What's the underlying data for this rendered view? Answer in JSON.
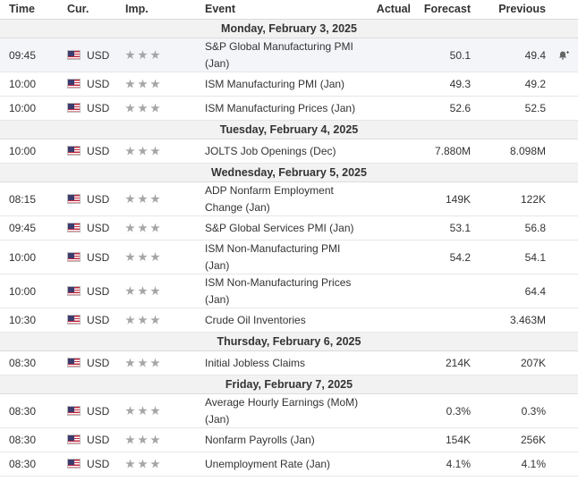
{
  "header": {
    "time": "Time",
    "currency": "Cur.",
    "importance": "Imp.",
    "event": "Event",
    "actual": "Actual",
    "forecast": "Forecast",
    "previous": "Previous"
  },
  "colors": {
    "star": "#a5a5a5",
    "day_bg": "#f2f2f2",
    "highlight_bg": "#f3f5f9",
    "flag_red": "#c0283e",
    "flag_blue": "#3c3b6e"
  },
  "days": [
    {
      "label": "Monday, February 3, 2025",
      "events": [
        {
          "time": "09:45",
          "currency": "USD",
          "flag_icon": "us-flag-icon",
          "importance": 3,
          "event_line1": "S&P Global Manufacturing PMI",
          "event_line2": "(Jan)",
          "actual": "",
          "forecast": "50.1",
          "previous": "49.4",
          "alert": true
        },
        {
          "time": "10:00",
          "currency": "USD",
          "flag_icon": "us-flag-icon",
          "importance": 3,
          "event_line1": "ISM Manufacturing PMI (Jan)",
          "event_line2": "",
          "actual": "",
          "forecast": "49.3",
          "previous": "49.2"
        },
        {
          "time": "10:00",
          "currency": "USD",
          "flag_icon": "us-flag-icon",
          "importance": 3,
          "event_line1": "ISM Manufacturing Prices (Jan)",
          "event_line2": "",
          "actual": "",
          "forecast": "52.6",
          "previous": "52.5"
        }
      ]
    },
    {
      "label": "Tuesday, February 4, 2025",
      "events": [
        {
          "time": "10:00",
          "currency": "USD",
          "flag_icon": "us-flag-icon",
          "importance": 3,
          "event_line1": "JOLTS Job Openings (Dec)",
          "event_line2": "",
          "actual": "",
          "forecast": "7.880M",
          "previous": "8.098M"
        }
      ]
    },
    {
      "label": "Wednesday, February 5, 2025",
      "events": [
        {
          "time": "08:15",
          "currency": "USD",
          "flag_icon": "us-flag-icon",
          "importance": 3,
          "event_line1": "ADP Nonfarm Employment",
          "event_line2": "Change (Jan)",
          "actual": "",
          "forecast": "149K",
          "previous": "122K"
        },
        {
          "time": "09:45",
          "currency": "USD",
          "flag_icon": "us-flag-icon",
          "importance": 3,
          "event_line1": "S&P Global Services PMI (Jan)",
          "event_line2": "",
          "actual": "",
          "forecast": "53.1",
          "previous": "56.8"
        },
        {
          "time": "10:00",
          "currency": "USD",
          "flag_icon": "us-flag-icon",
          "importance": 3,
          "event_line1": "ISM Non-Manufacturing PMI",
          "event_line2": "(Jan)",
          "actual": "",
          "forecast": "54.2",
          "previous": "54.1"
        },
        {
          "time": "10:00",
          "currency": "USD",
          "flag_icon": "us-flag-icon",
          "importance": 3,
          "event_line1": "ISM Non-Manufacturing Prices",
          "event_line2": "(Jan)",
          "actual": "",
          "forecast": "",
          "previous": "64.4"
        },
        {
          "time": "10:30",
          "currency": "USD",
          "flag_icon": "us-flag-icon",
          "importance": 3,
          "event_line1": "Crude Oil Inventories",
          "event_line2": "",
          "actual": "",
          "forecast": "",
          "previous": "3.463M"
        }
      ]
    },
    {
      "label": "Thursday, February 6, 2025",
      "events": [
        {
          "time": "08:30",
          "currency": "USD",
          "flag_icon": "us-flag-icon",
          "importance": 3,
          "event_line1": "Initial Jobless Claims",
          "event_line2": "",
          "actual": "",
          "forecast": "214K",
          "previous": "207K"
        }
      ]
    },
    {
      "label": "Friday, February 7, 2025",
      "events": [
        {
          "time": "08:30",
          "currency": "USD",
          "flag_icon": "us-flag-icon",
          "importance": 3,
          "event_line1": "Average Hourly Earnings (MoM)",
          "event_line2": "(Jan)",
          "actual": "",
          "forecast": "0.3%",
          "previous": "0.3%"
        },
        {
          "time": "08:30",
          "currency": "USD",
          "flag_icon": "us-flag-icon",
          "importance": 3,
          "event_line1": "Nonfarm Payrolls (Jan)",
          "event_line2": "",
          "actual": "",
          "forecast": "154K",
          "previous": "256K"
        },
        {
          "time": "08:30",
          "currency": "USD",
          "flag_icon": "us-flag-icon",
          "importance": 3,
          "event_line1": "Unemployment Rate (Jan)",
          "event_line2": "",
          "actual": "",
          "forecast": "4.1%",
          "previous": "4.1%"
        }
      ]
    }
  ]
}
